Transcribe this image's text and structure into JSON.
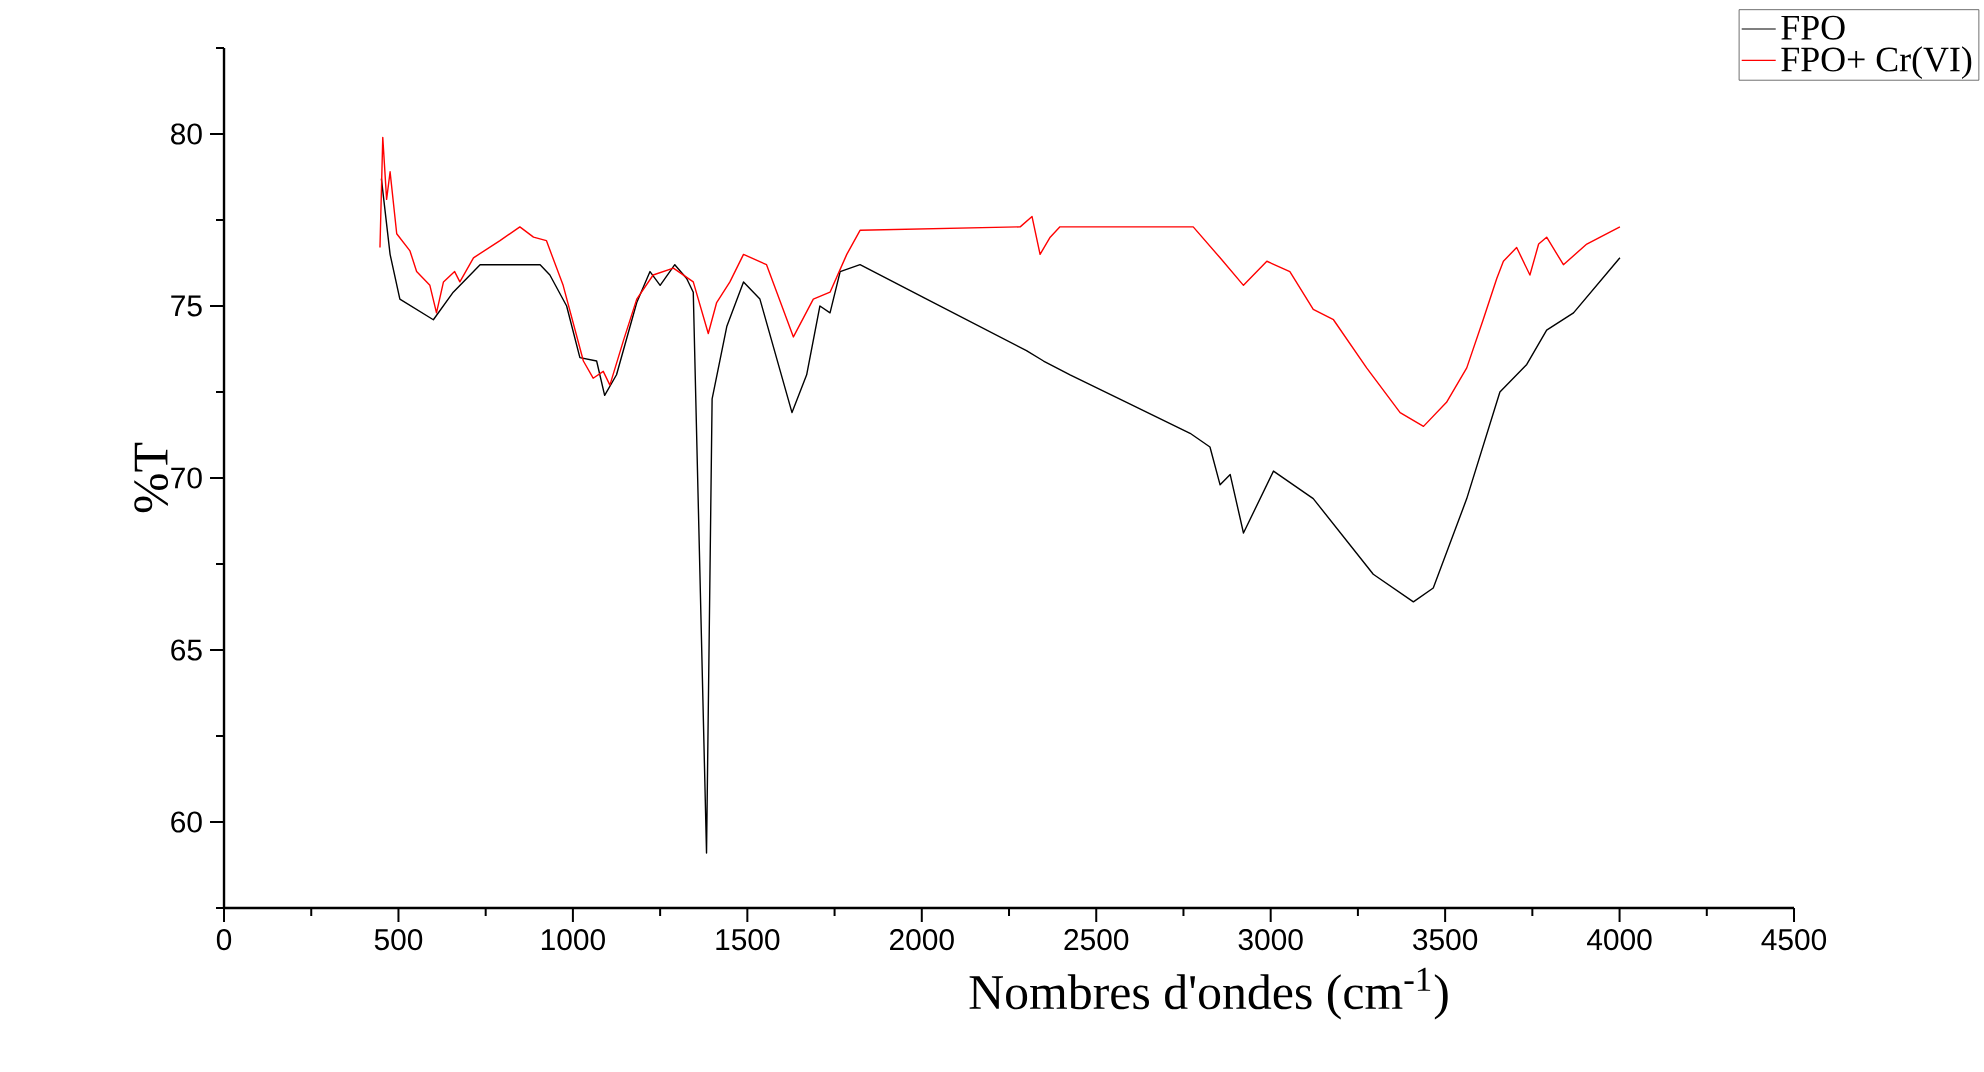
{
  "chart_data": {
    "type": "line",
    "xlabel": "Nombres d'ondes (cm$^{-1}$)",
    "ylabel": "%T",
    "xlim": [
      0,
      4500
    ],
    "ylim": [
      57.5,
      82.5
    ],
    "xticks": [
      0,
      {
        "value": 250,
        "label": null
      },
      500,
      {
        "value": 750,
        "label": null
      },
      1000,
      {
        "value": 1250,
        "label": null
      },
      1500,
      {
        "value": 1750,
        "label": null
      },
      2000,
      {
        "value": 2250,
        "label": null
      },
      2500,
      {
        "value": 2750,
        "label": null
      },
      3000,
      {
        "value": 3250,
        "label": null
      },
      3500,
      {
        "value": 3750,
        "label": null
      },
      4000,
      {
        "value": 4250,
        "label": null
      },
      4500
    ],
    "yticks": [
      {
        "value": 57.5,
        "label": null
      },
      60,
      {
        "value": 62.5,
        "label": null
      },
      65,
      {
        "value": 67.5,
        "label": null
      },
      70,
      {
        "value": 72.5,
        "label": null
      },
      75,
      {
        "value": 77.5,
        "label": null
      },
      80,
      {
        "value": 82.5,
        "label": null
      }
    ],
    "grid": false,
    "legend": "top right",
    "marker": "none",
    "line_style": "solid",
    "series": [
      {
        "name": "FPO",
        "color": "#000000",
        "x": [
          451,
          476,
          504,
          600,
          657,
          734,
          906,
          934,
          982,
          1020,
          1068,
          1091,
          1125,
          1183,
          1221,
          1250,
          1292,
          1326,
          1345,
          1383,
          1399,
          1441,
          1489,
          1536,
          1628,
          1670,
          1708,
          1737,
          1766,
          1823,
          2014,
          2300,
          2349,
          2425,
          2587,
          2769,
          2826,
          2855,
          2884,
          2922,
          3008,
          3122,
          3294,
          3409,
          3466,
          3562,
          3657,
          3734,
          3791,
          3868,
          4001
        ],
        "values": [
          78.7,
          76.5,
          75.2,
          74.6,
          75.4,
          76.2,
          76.2,
          75.9,
          75.0,
          73.5,
          73.4,
          72.4,
          73.0,
          75.1,
          76.0,
          75.6,
          76.2,
          75.8,
          75.4,
          59.1,
          72.3,
          74.4,
          75.7,
          75.2,
          71.9,
          73.0,
          75.0,
          74.8,
          76.0,
          76.2,
          75.2,
          73.7,
          73.4,
          73.0,
          72.2,
          71.3,
          70.9,
          69.8,
          70.1,
          68.4,
          70.2,
          69.4,
          67.2,
          66.4,
          66.8,
          69.4,
          72.5,
          73.3,
          74.3,
          74.8,
          76.4
        ]
      },
      {
        "name": "FPO+ Cr(VI)",
        "color": "#ff0000",
        "x": [
          447,
          455,
          466,
          476,
          495,
          533,
          552,
          590,
          609,
          629,
          661,
          676,
          715,
          791,
          848,
          887,
          924,
          972,
          1030,
          1058,
          1087,
          1106,
          1145,
          1183,
          1230,
          1288,
          1345,
          1388,
          1412,
          1450,
          1489,
          1555,
          1632,
          1689,
          1737,
          1785,
          1823,
          2282,
          2316,
          2339,
          2368,
          2396,
          2778,
          2855,
          2922,
          2989,
          3055,
          3122,
          3180,
          3275,
          3371,
          3438,
          3504,
          3562,
          3609,
          3648,
          3667,
          3705,
          3743,
          3768,
          3791,
          3839,
          3906,
          4001
        ],
        "values": [
          76.7,
          79.9,
          78.1,
          78.9,
          77.1,
          76.6,
          76.0,
          75.6,
          74.8,
          75.7,
          76.0,
          75.7,
          76.4,
          76.9,
          77.3,
          77.0,
          76.9,
          75.6,
          73.4,
          72.9,
          73.1,
          72.7,
          74.0,
          75.2,
          75.9,
          76.1,
          75.7,
          74.2,
          75.1,
          75.7,
          76.5,
          76.2,
          74.1,
          75.2,
          75.4,
          76.5,
          77.2,
          77.3,
          77.6,
          76.5,
          77.0,
          77.3,
          77.3,
          76.4,
          75.6,
          76.3,
          76.0,
          74.9,
          74.6,
          73.2,
          71.9,
          71.5,
          72.2,
          73.2,
          74.6,
          75.8,
          76.3,
          76.7,
          75.9,
          76.8,
          77.0,
          76.2,
          76.8,
          77.3
        ]
      }
    ]
  }
}
